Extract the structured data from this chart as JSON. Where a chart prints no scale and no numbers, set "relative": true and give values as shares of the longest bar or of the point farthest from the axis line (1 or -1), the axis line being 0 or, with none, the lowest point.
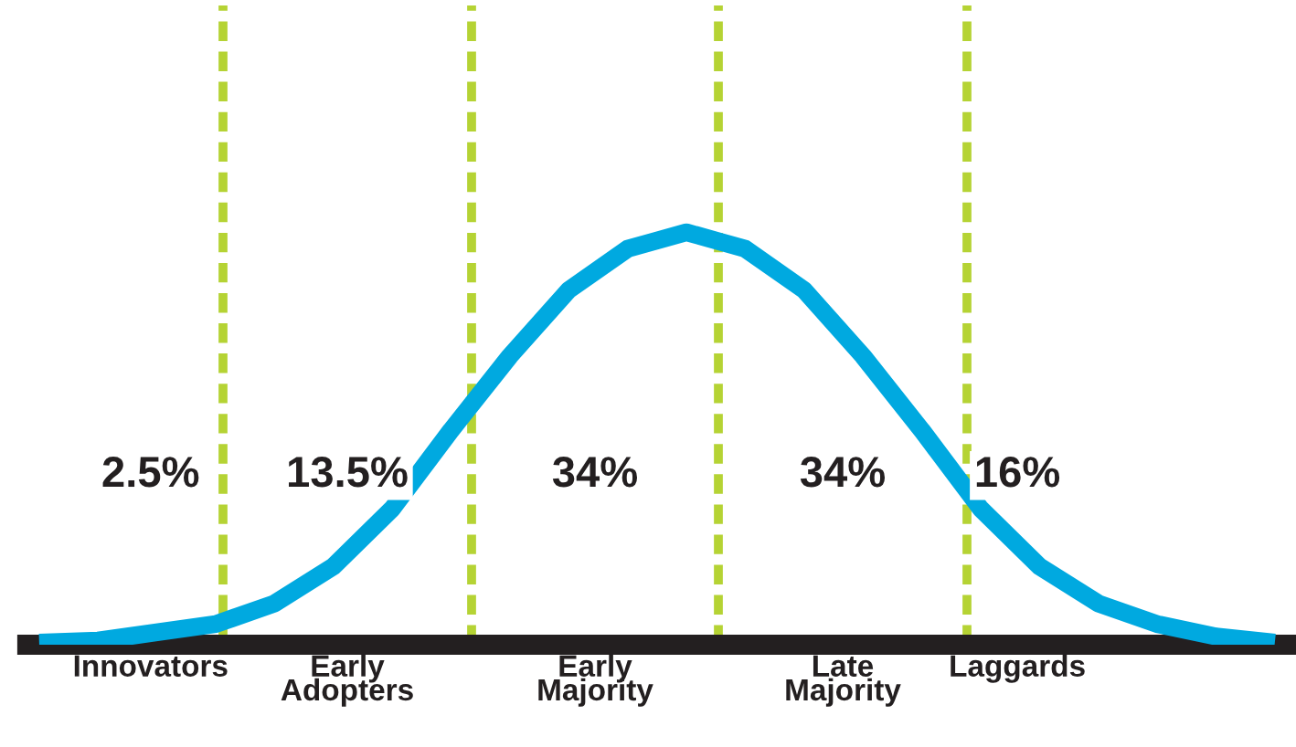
{
  "chart_data": {
    "type": "line",
    "relative": true,
    "grid": false,
    "legend": false,
    "marker": "none",
    "line_style": "solid",
    "categories": [
      null,
      null,
      null,
      null,
      null,
      null,
      null,
      null,
      null,
      null,
      null,
      null,
      null,
      null,
      null,
      null,
      null,
      null,
      null,
      null,
      null,
      null
    ],
    "series": [
      {
        "color": "#00a9e0",
        "values": [
          0.005,
          0.01,
          0.03,
          0.05,
          0.1,
          0.19,
          0.33,
          0.52,
          0.7,
          0.86,
          0.96,
          1,
          0.96,
          0.86,
          0.7,
          0.52,
          0.33,
          0.19,
          0.1,
          0.05,
          0.02,
          0.005
        ]
      }
    ],
    "annotations": [
      "2.5%",
      "13.5%",
      "34%",
      "34%",
      "16%",
      "Innovators",
      "Early\nAdopters",
      "Early\nMajority",
      "Late\nMajority",
      "Laggards"
    ]
  }
}
